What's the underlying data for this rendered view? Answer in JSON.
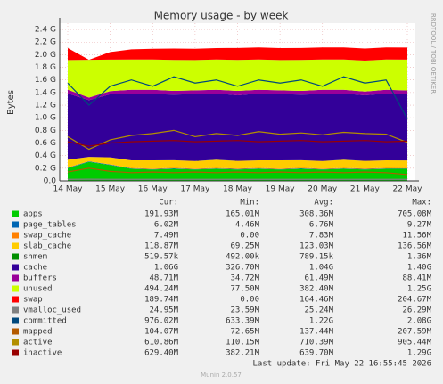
{
  "chart_data": {
    "type": "area",
    "title": "Memory usage - by week",
    "y_label": "Bytes",
    "side_text": "RRDTOOL / TOBI OETIKER",
    "categories": [
      "14 May",
      null,
      "15 May",
      null,
      "16 May",
      null,
      "17 May",
      null,
      "18 May",
      null,
      "19 May",
      null,
      "20 May",
      null,
      "21 May",
      null,
      "22 May"
    ],
    "ylim": [
      0,
      2.5
    ],
    "yticks": [
      {
        "value": 0,
        "label": "0.0"
      },
      {
        "value": 0.2,
        "label": "0.2 G"
      },
      {
        "value": 0.4,
        "label": "0.4 G"
      },
      {
        "value": 0.6,
        "label": "0.6 G"
      },
      {
        "value": 0.8,
        "label": "0.8 G"
      },
      {
        "value": 1.0,
        "label": "1.0 G"
      },
      {
        "value": 1.2,
        "label": "1.2 G"
      },
      {
        "value": 1.4,
        "label": "1.4 G"
      },
      {
        "value": 1.6,
        "label": "1.6 G"
      },
      {
        "value": 1.8,
        "label": "1.8 G"
      },
      {
        "value": 2.0,
        "label": "2.0 G"
      },
      {
        "value": 2.2,
        "label": "2.2 G"
      },
      {
        "value": 2.4,
        "label": "2.4 G"
      }
    ],
    "grid": true,
    "legend_columns": [
      "Cur:",
      "Min:",
      "Avg:",
      "Max:"
    ],
    "series": [
      {
        "name": "apps",
        "color": "#00cc00",
        "stacked": true,
        "stats": [
          "191.93M",
          "165.01M",
          "308.36M",
          "705.08M"
        ],
        "values": [
          0.2,
          0.3,
          0.25,
          0.19,
          0.18,
          0.19,
          0.18,
          0.19,
          0.18,
          0.19,
          0.18,
          0.19,
          0.18,
          0.19,
          0.18,
          0.19,
          0.19
        ]
      },
      {
        "name": "page_tables",
        "color": "#0066b3",
        "stacked": true,
        "stats": [
          "6.02M",
          "4.46M",
          "6.76M",
          "9.27M"
        ],
        "values": [
          0.007,
          0.009,
          0.008,
          0.006,
          0.006,
          0.007,
          0.006,
          0.006,
          0.007,
          0.006,
          0.006,
          0.007,
          0.006,
          0.006,
          0.007,
          0.006,
          0.006
        ]
      },
      {
        "name": "swap_cache",
        "color": "#ff8000",
        "stacked": true,
        "stats": [
          "7.49M",
          "0.00",
          "7.83M",
          "11.56M"
        ],
        "values": [
          0.008,
          0.0,
          0.004,
          0.008,
          0.008,
          0.009,
          0.008,
          0.008,
          0.009,
          0.008,
          0.008,
          0.009,
          0.008,
          0.008,
          0.009,
          0.008,
          0.007
        ]
      },
      {
        "name": "slab_cache",
        "color": "#ffcc00",
        "stacked": true,
        "stats": [
          "118.87M",
          "69.25M",
          "123.03M",
          "136.56M"
        ],
        "values": [
          0.12,
          0.07,
          0.11,
          0.12,
          0.13,
          0.12,
          0.12,
          0.13,
          0.12,
          0.12,
          0.13,
          0.12,
          0.12,
          0.13,
          0.12,
          0.12,
          0.12
        ]
      },
      {
        "name": "shmem",
        "color": "#008f00",
        "stacked": true,
        "stats": [
          "519.57k",
          "492.00k",
          "789.15k",
          "1.36M"
        ],
        "values": [
          0.0008,
          0.001,
          0.0008,
          0.0007,
          0.0008,
          0.0007,
          0.0008,
          0.0007,
          0.0008,
          0.0007,
          0.0008,
          0.0007,
          0.0008,
          0.0007,
          0.0008,
          0.0007,
          0.0005
        ]
      },
      {
        "name": "cache",
        "color": "#330099",
        "stacked": true,
        "stats": [
          "1.06G",
          "326.70M",
          "1.04G",
          "1.40G"
        ],
        "values": [
          1.05,
          0.9,
          1.0,
          1.06,
          1.05,
          1.04,
          1.06,
          1.05,
          1.04,
          1.06,
          1.05,
          1.04,
          1.06,
          1.05,
          1.04,
          1.06,
          1.06
        ]
      },
      {
        "name": "buffers",
        "color": "#990099",
        "stacked": true,
        "stats": [
          "48.71M",
          "34.72M",
          "61.49M",
          "88.41M"
        ],
        "values": [
          0.06,
          0.04,
          0.05,
          0.06,
          0.07,
          0.06,
          0.06,
          0.06,
          0.07,
          0.06,
          0.06,
          0.06,
          0.07,
          0.06,
          0.06,
          0.06,
          0.05
        ]
      },
      {
        "name": "unused",
        "color": "#ccff00",
        "stacked": true,
        "stats": [
          "494.24M",
          "77.50M",
          "382.40M",
          "1.25G"
        ],
        "values": [
          0.47,
          0.6,
          0.5,
          0.48,
          0.48,
          0.49,
          0.48,
          0.48,
          0.49,
          0.48,
          0.48,
          0.49,
          0.48,
          0.48,
          0.49,
          0.48,
          0.49
        ]
      },
      {
        "name": "swap",
        "color": "#ff0000",
        "stacked": true,
        "stats": [
          "189.74M",
          "0.00",
          "164.46M",
          "204.67M"
        ],
        "values": [
          0.19,
          0.0,
          0.12,
          0.16,
          0.17,
          0.18,
          0.18,
          0.18,
          0.19,
          0.19,
          0.19,
          0.19,
          0.19,
          0.19,
          0.19,
          0.19,
          0.19
        ]
      },
      {
        "name": "vmalloc_used",
        "color": "#808080",
        "stacked": false,
        "stats": [
          "24.95M",
          "23.59M",
          "25.24M",
          "26.29M"
        ],
        "values": [
          0.025,
          0.026,
          0.025,
          0.025,
          0.025,
          0.025,
          0.025,
          0.025,
          0.025,
          0.025,
          0.025,
          0.025,
          0.025,
          0.025,
          0.025,
          0.025,
          0.025
        ]
      },
      {
        "name": "committed",
        "color": "#00487d",
        "stacked": false,
        "stats": [
          "976.02M",
          "633.39M",
          "1.22G",
          "2.08G"
        ],
        "values": [
          1.55,
          1.2,
          1.5,
          1.6,
          1.5,
          1.65,
          1.55,
          1.6,
          1.5,
          1.6,
          1.55,
          1.6,
          1.5,
          1.65,
          1.55,
          1.6,
          0.98
        ]
      },
      {
        "name": "mapped",
        "color": "#b35a00",
        "stacked": false,
        "stats": [
          "104.07M",
          "72.65M",
          "137.44M",
          "207.59M"
        ],
        "values": [
          0.14,
          0.2,
          0.15,
          0.13,
          0.14,
          0.13,
          0.14,
          0.13,
          0.14,
          0.13,
          0.14,
          0.13,
          0.14,
          0.13,
          0.14,
          0.13,
          0.1
        ]
      },
      {
        "name": "active",
        "color": "#b38f00",
        "stacked": false,
        "stats": [
          "610.86M",
          "110.15M",
          "710.39M",
          "905.44M"
        ],
        "values": [
          0.7,
          0.5,
          0.65,
          0.72,
          0.75,
          0.8,
          0.7,
          0.75,
          0.72,
          0.78,
          0.74,
          0.76,
          0.73,
          0.77,
          0.75,
          0.74,
          0.61
        ]
      },
      {
        "name": "inactive",
        "color": "#990000",
        "stacked": false,
        "stats": [
          "629.40M",
          "382.21M",
          "639.70M",
          "1.29G"
        ],
        "values": [
          0.62,
          0.55,
          0.6,
          0.62,
          0.63,
          0.64,
          0.62,
          0.63,
          0.64,
          0.62,
          0.63,
          0.64,
          0.62,
          0.63,
          0.64,
          0.62,
          0.63
        ]
      }
    ],
    "last_update": "Last update: Fri May 22 16:55:45 2026",
    "footer": "Munin 2.0.57"
  }
}
